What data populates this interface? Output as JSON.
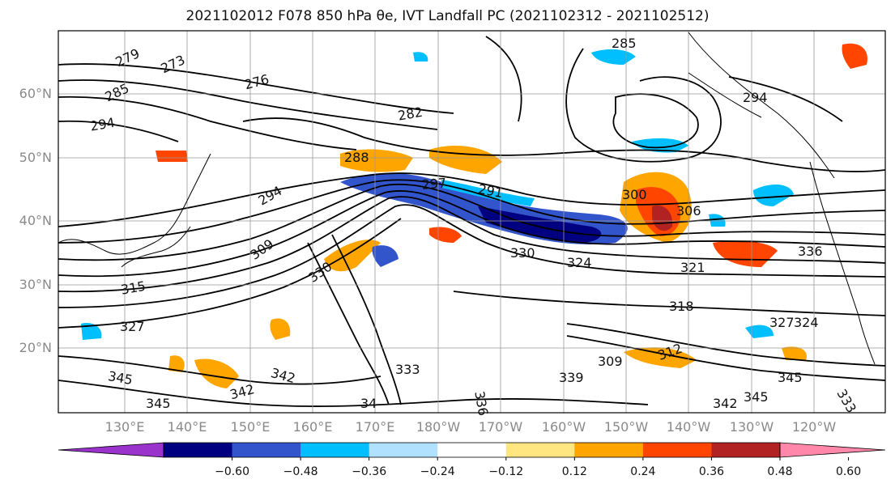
{
  "title": "2021102012 F078 850 hPa θe, IVT Landfall PC (2021102312 - 2021102512)",
  "lat_labels": [
    "60°N",
    "50°N",
    "40°N",
    "30°N",
    "20°N"
  ],
  "lon_labels": [
    "130°E",
    "140°E",
    "150°E",
    "160°E",
    "170°E",
    "180°W",
    "170°W",
    "160°W",
    "150°W",
    "140°W",
    "130°W",
    "120°W"
  ],
  "contour_labels": [
    "279",
    "273",
    "285",
    "294",
    "276",
    "282",
    "285",
    "294",
    "288",
    "297",
    "291",
    "294",
    "300",
    "306",
    "309",
    "315",
    "330",
    "321",
    "336",
    "324",
    "327",
    "330",
    "318",
    "312",
    "309",
    "327",
    "345",
    "342",
    "333",
    "339",
    "342",
    "345",
    "342",
    "345",
    "34",
    "336",
    "345",
    "333",
    "324"
  ],
  "colorbar": {
    "ticks": [
      "−0.60",
      "−0.48",
      "−0.36",
      "−0.24",
      "−0.12",
      "0.12",
      "0.24",
      "0.36",
      "0.48",
      "0.60"
    ],
    "colors": [
      "#9933cc",
      "#000080",
      "#3355cc",
      "#00bfff",
      "#b0e2ff",
      "#ffffff",
      "#ffe680",
      "#ffa500",
      "#ff4500",
      "#b22222",
      "#ff88aa"
    ]
  }
}
